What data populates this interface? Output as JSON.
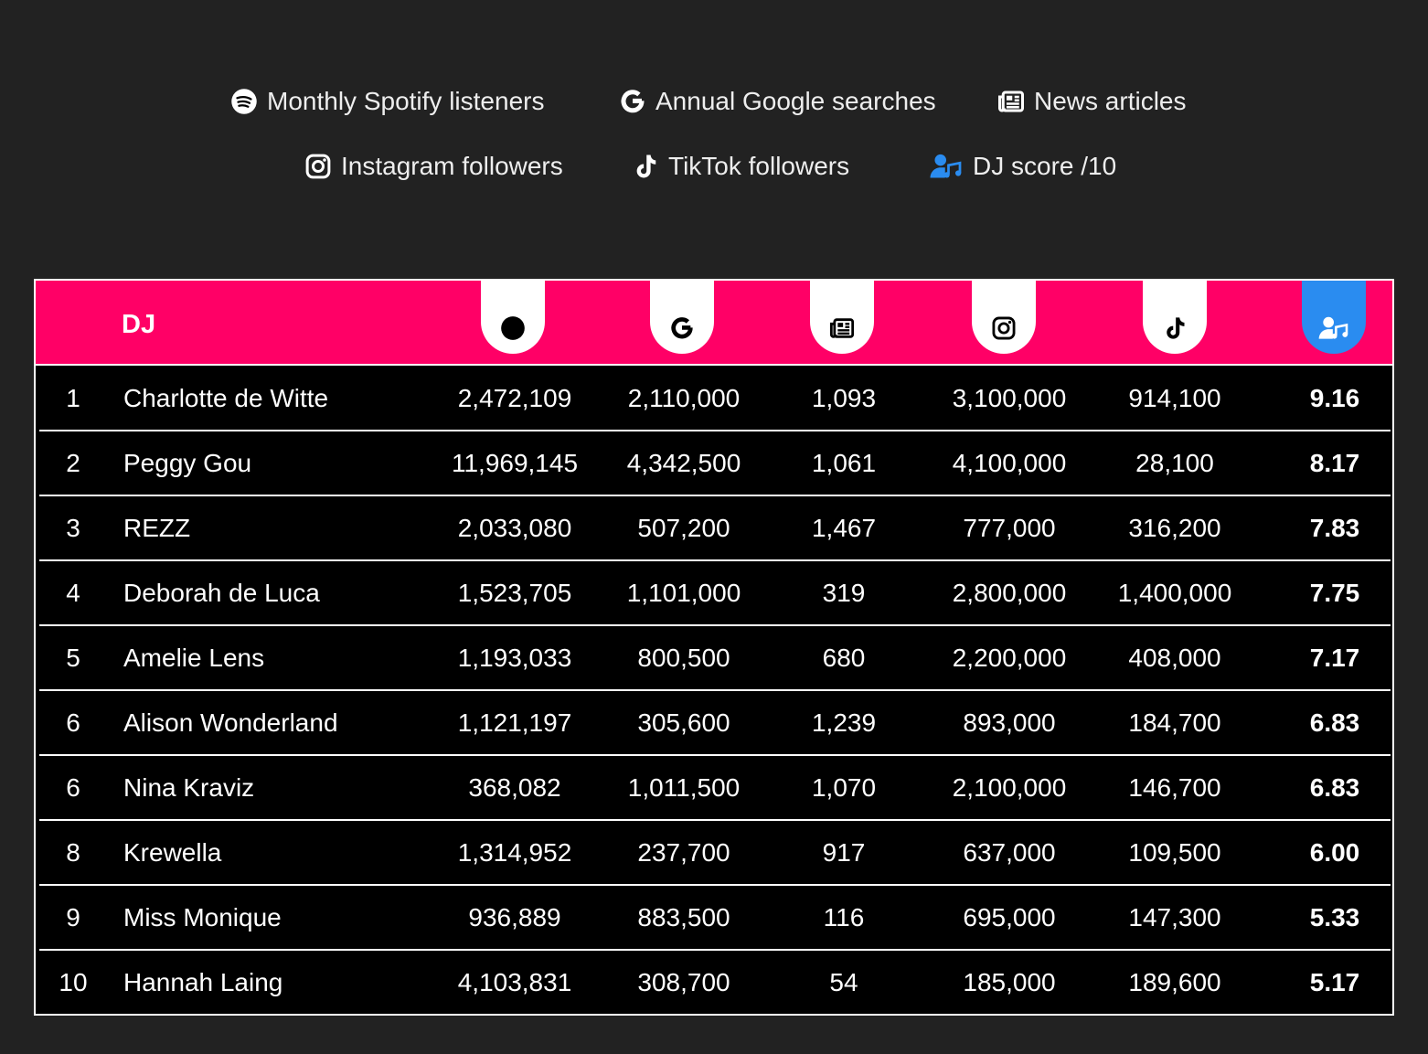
{
  "legend": [
    "Monthly Spotify listeners",
    "Annual Google searches",
    "News articles",
    "Instagram followers",
    "TikTok followers",
    "DJ score /10"
  ],
  "table": {
    "header": "DJ",
    "rows": [
      [
        "1",
        "Charlotte de Witte",
        "2,472,109",
        "2,110,000",
        "1,093",
        "3,100,000",
        "914,100",
        "9.16"
      ],
      [
        "2",
        "Peggy Gou",
        "11,969,145",
        "4,342,500",
        "1,061",
        "4,100,000",
        "28,100",
        "8.17"
      ],
      [
        "3",
        "REZZ",
        "2,033,080",
        "507,200",
        "1,467",
        "777,000",
        "316,200",
        "7.83"
      ],
      [
        "4",
        "Deborah de Luca",
        "1,523,705",
        "1,101,000",
        "319",
        "2,800,000",
        "1,400,000",
        "7.75"
      ],
      [
        "5",
        "Amelie Lens",
        "1,193,033",
        "800,500",
        "680",
        "2,200,000",
        "408,000",
        "7.17"
      ],
      [
        "6",
        "Alison Wonderland",
        "1,121,197",
        "305,600",
        "1,239",
        "893,000",
        "184,700",
        "6.83"
      ],
      [
        "6",
        "Nina Kraviz",
        "368,082",
        "1,011,500",
        "1,070",
        "2,100,000",
        "146,700",
        "6.83"
      ],
      [
        "8",
        "Krewella",
        "1,314,952",
        "237,700",
        "917",
        "637,000",
        "109,500",
        "6.00"
      ],
      [
        "9",
        "Miss Monique",
        "936,889",
        "883,500",
        "116",
        "695,000",
        "147,300",
        "5.33"
      ],
      [
        "10",
        "Hannah Laing",
        "4,103,831",
        "308,700",
        "54",
        "185,000",
        "189,600",
        "5.17"
      ]
    ]
  }
}
